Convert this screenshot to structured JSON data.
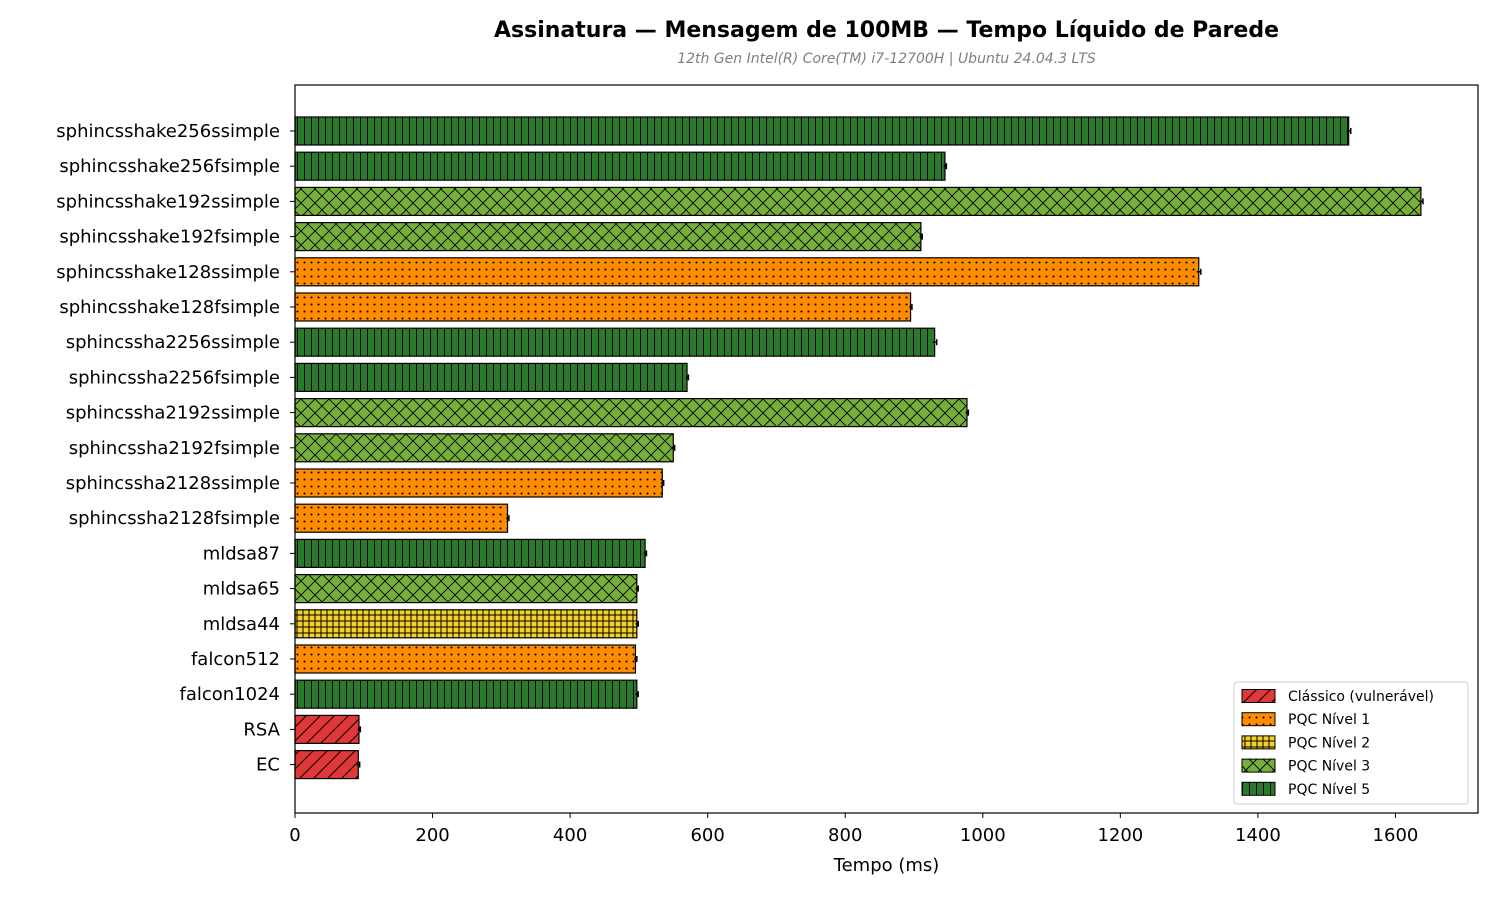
{
  "chart_data": {
    "type": "bar",
    "orientation": "horizontal",
    "title": "Assinatura — Mensagem de 100MB — Tempo Líquido de Parede",
    "subtitle": "12th Gen Intel(R) Core(TM) i7-12700H | Ubuntu 24.04.3 LTS",
    "xlabel": "Tempo (ms)",
    "ylabel": "",
    "xlim": [
      0,
      1720
    ],
    "xticks": [
      0,
      200,
      400,
      600,
      800,
      1000,
      1200,
      1400,
      1600
    ],
    "grid": false,
    "legend_position": "bottom-right",
    "categories": [
      "sphincsshake256ssimple",
      "sphincsshake256fsimple",
      "sphincsshake192ssimple",
      "sphincsshake192fsimple",
      "sphincsshake128ssimple",
      "sphincsshake128fsimple",
      "sphincssha2256ssimple",
      "sphincssha2256fsimple",
      "sphincssha2192ssimple",
      "sphincssha2192fsimple",
      "sphincssha2128ssimple",
      "sphincssha2128fsimple",
      "mldsa87",
      "mldsa65",
      "mldsa44",
      "falcon512",
      "falcon1024",
      "RSA",
      "EC"
    ],
    "values": [
      1532,
      945,
      1637,
      910,
      1314,
      895,
      930,
      570,
      977,
      550,
      534,
      309,
      509,
      497,
      497,
      495,
      497,
      93,
      92
    ],
    "errors": [
      3,
      2,
      3,
      2,
      3,
      2,
      3,
      2,
      2,
      2,
      2,
      2,
      2,
      2,
      2,
      2,
      2,
      2,
      2
    ],
    "groups": [
      "PQC Nível 5",
      "PQC Nível 5",
      "PQC Nível 3",
      "PQC Nível 3",
      "PQC Nível 1",
      "PQC Nível 1",
      "PQC Nível 5",
      "PQC Nível 5",
      "PQC Nível 3",
      "PQC Nível 3",
      "PQC Nível 1",
      "PQC Nível 1",
      "PQC Nível 5",
      "PQC Nível 3",
      "PQC Nível 2",
      "PQC Nível 1",
      "PQC Nível 5",
      "Clássico (vulnerável)",
      "Clássico (vulnerável)"
    ],
    "legend": [
      {
        "name": "Clássico (vulnerável)",
        "color": "#e03838",
        "hatch": "diagonal"
      },
      {
        "name": "PQC Nível 1",
        "color": "#ff8c00",
        "hatch": "dots"
      },
      {
        "name": "PQC Nível 2",
        "color": "#f5d02a",
        "hatch": "grid"
      },
      {
        "name": "PQC Nível 3",
        "color": "#76b03a",
        "hatch": "crosshatch"
      },
      {
        "name": "PQC Nível 5",
        "color": "#2b7a2b",
        "hatch": "vertical"
      }
    ]
  }
}
